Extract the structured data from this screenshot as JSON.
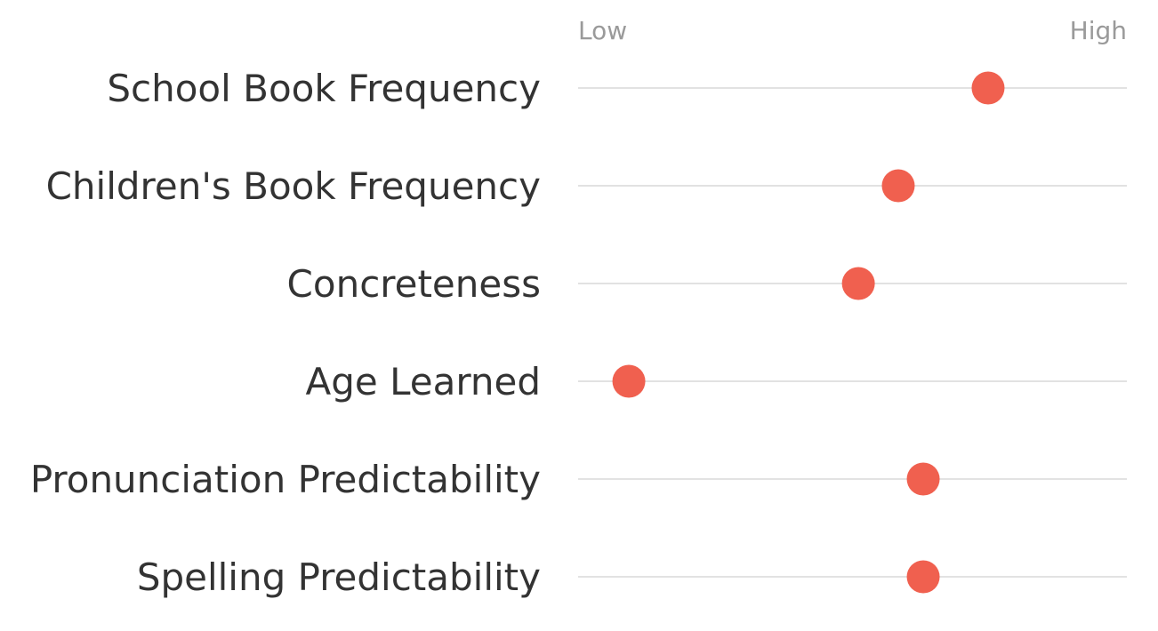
{
  "chart_data": {
    "type": "scatter",
    "scale_min_label": "Low",
    "scale_max_label": "High",
    "xlim": [
      0,
      100
    ],
    "categories": [
      "School Book Frequency",
      "Children's Book Frequency",
      "Concreteness",
      "Age Learned",
      "Pronunciation Predictability",
      "Spelling Predictability"
    ],
    "values": [
      77,
      59,
      51,
      5,
      64,
      64
    ],
    "marker_color": "#f0604f",
    "track_color": "#d0d0d0",
    "grid": false,
    "legend": "none"
  }
}
